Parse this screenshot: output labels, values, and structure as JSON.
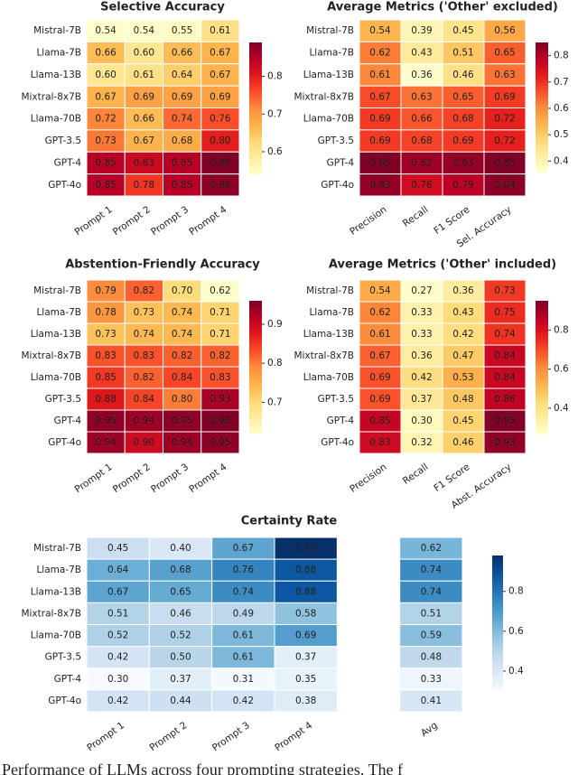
{
  "chart_data": [
    {
      "type": "heatmap",
      "title": "Selective Accuracy",
      "colormap": "YlOrRd",
      "rows": [
        "Mistral-7B",
        "Llama-7B",
        "Llama-13B",
        "Mixtral-8x7B",
        "Llama-70B",
        "GPT-3.5",
        "GPT-4",
        "GPT-4o"
      ],
      "columns": [
        "Prompt 1",
        "Prompt 2",
        "Prompt 3",
        "Prompt 4"
      ],
      "values": [
        [
          0.54,
          0.54,
          0.55,
          0.61
        ],
        [
          0.66,
          0.6,
          0.66,
          0.67
        ],
        [
          0.6,
          0.61,
          0.64,
          0.67
        ],
        [
          0.67,
          0.69,
          0.69,
          0.69
        ],
        [
          0.72,
          0.66,
          0.74,
          0.76
        ],
        [
          0.73,
          0.67,
          0.68,
          0.8
        ],
        [
          0.85,
          0.83,
          0.85,
          0.89
        ],
        [
          0.85,
          0.78,
          0.85,
          0.88
        ]
      ],
      "value_labels": [
        [
          "0.54",
          "0.54",
          "0.55",
          "0.61"
        ],
        [
          "0.66",
          "0.60",
          "0.66",
          "0.67"
        ],
        [
          "0.60",
          "0.61",
          "0.64",
          "0.67"
        ],
        [
          "0.67",
          "0.69",
          "0.69",
          "0.69"
        ],
        [
          "0.72",
          "0.66",
          "0.74",
          "0.76"
        ],
        [
          "0.73",
          "0.67",
          "0.68",
          "0.80"
        ],
        [
          "0.85",
          "0.83",
          "0.85",
          "0.89"
        ],
        [
          "0.85",
          "0.78",
          "0.85",
          "0.88"
        ]
      ],
      "clim": [
        0.54,
        0.89
      ],
      "cticks": [
        0.6,
        0.7,
        0.8
      ]
    },
    {
      "type": "heatmap",
      "title": "Average Metrics ('Other' excluded)",
      "colormap": "YlOrRd",
      "rows": [
        "Mistral-7B",
        "Llama-7B",
        "Llama-13B",
        "Mixtral-8x7B",
        "Llama-70B",
        "GPT-3.5",
        "GPT-4",
        "GPT-4o"
      ],
      "columns": [
        "Precision",
        "Recall",
        "F1 Score",
        "Sel. Accuracy"
      ],
      "values": [
        [
          0.54,
          0.39,
          0.45,
          0.56
        ],
        [
          0.62,
          0.43,
          0.51,
          0.65
        ],
        [
          0.61,
          0.36,
          0.46,
          0.63
        ],
        [
          0.67,
          0.63,
          0.65,
          0.69
        ],
        [
          0.69,
          0.66,
          0.68,
          0.72
        ],
        [
          0.69,
          0.68,
          0.69,
          0.72
        ],
        [
          0.85,
          0.82,
          0.83,
          0.85
        ],
        [
          0.83,
          0.76,
          0.79,
          0.84
        ]
      ],
      "value_labels": [
        [
          "0.54",
          "0.39",
          "0.45",
          "0.56"
        ],
        [
          "0.62",
          "0.43",
          "0.51",
          "0.65"
        ],
        [
          "0.61",
          "0.36",
          "0.46",
          "0.63"
        ],
        [
          "0.67",
          "0.63",
          "0.65",
          "0.69"
        ],
        [
          "0.69",
          "0.66",
          "0.68",
          "0.72"
        ],
        [
          "0.69",
          "0.68",
          "0.69",
          "0.72"
        ],
        [
          "0.85",
          "0.82",
          "0.83",
          "0.85"
        ],
        [
          "0.83",
          "0.76",
          "0.79",
          "0.84"
        ]
      ],
      "clim": [
        0.36,
        0.85
      ],
      "cticks": [
        0.4,
        0.5,
        0.6,
        0.7,
        0.8
      ]
    },
    {
      "type": "heatmap",
      "title": "Abstention-Friendly Accuracy",
      "colormap": "YlOrRd",
      "rows": [
        "Mistral-7B",
        "Llama-7B",
        "Llama-13B",
        "Mixtral-8x7B",
        "Llama-70B",
        "GPT-3.5",
        "GPT-4",
        "GPT-4o"
      ],
      "columns": [
        "Prompt 1",
        "Prompt 2",
        "Prompt 3",
        "Prompt 4"
      ],
      "values": [
        [
          0.79,
          0.82,
          0.7,
          0.62
        ],
        [
          0.78,
          0.73,
          0.74,
          0.71
        ],
        [
          0.73,
          0.74,
          0.74,
          0.71
        ],
        [
          0.83,
          0.83,
          0.82,
          0.82
        ],
        [
          0.85,
          0.82,
          0.84,
          0.83
        ],
        [
          0.88,
          0.84,
          0.8,
          0.93
        ],
        [
          0.95,
          0.94,
          0.95,
          0.96
        ],
        [
          0.94,
          0.9,
          0.94,
          0.95
        ]
      ],
      "value_labels": [
        [
          "0.79",
          "0.82",
          "0.70",
          "0.62"
        ],
        [
          "0.78",
          "0.73",
          "0.74",
          "0.71"
        ],
        [
          "0.73",
          "0.74",
          "0.74",
          "0.71"
        ],
        [
          "0.83",
          "0.83",
          "0.82",
          "0.82"
        ],
        [
          "0.85",
          "0.82",
          "0.84",
          "0.83"
        ],
        [
          "0.88",
          "0.84",
          "0.80",
          "0.93"
        ],
        [
          "0.95",
          "0.94",
          "0.95",
          "0.96"
        ],
        [
          "0.94",
          "0.90",
          "0.94",
          "0.95"
        ]
      ],
      "clim": [
        0.62,
        0.96
      ],
      "cticks": [
        0.7,
        0.8,
        0.9
      ]
    },
    {
      "type": "heatmap",
      "title": "Average Metrics ('Other' included)",
      "colormap": "YlOrRd",
      "rows": [
        "Mistral-7B",
        "Llama-7B",
        "Llama-13B",
        "Mixtral-8x7B",
        "Llama-70B",
        "GPT-3.5",
        "GPT-4",
        "GPT-4o"
      ],
      "columns": [
        "Precision",
        "Recall",
        "F1 Score",
        "Abst. Accuracy"
      ],
      "values": [
        [
          0.54,
          0.27,
          0.36,
          0.73
        ],
        [
          0.62,
          0.33,
          0.43,
          0.75
        ],
        [
          0.61,
          0.33,
          0.42,
          0.74
        ],
        [
          0.67,
          0.36,
          0.47,
          0.84
        ],
        [
          0.69,
          0.42,
          0.53,
          0.84
        ],
        [
          0.69,
          0.37,
          0.48,
          0.86
        ],
        [
          0.85,
          0.3,
          0.45,
          0.95
        ],
        [
          0.83,
          0.32,
          0.46,
          0.93
        ]
      ],
      "value_labels": [
        [
          "0.54",
          "0.27",
          "0.36",
          "0.73"
        ],
        [
          "0.62",
          "0.33",
          "0.43",
          "0.75"
        ],
        [
          "0.61",
          "0.33",
          "0.42",
          "0.74"
        ],
        [
          "0.67",
          "0.36",
          "0.47",
          "0.84"
        ],
        [
          "0.69",
          "0.42",
          "0.53",
          "0.84"
        ],
        [
          "0.69",
          "0.37",
          "0.48",
          "0.86"
        ],
        [
          "0.85",
          "0.30",
          "0.45",
          "0.95"
        ],
        [
          "0.83",
          "0.32",
          "0.46",
          "0.93"
        ]
      ],
      "clim": [
        0.27,
        0.95
      ],
      "cticks": [
        0.4,
        0.6,
        0.8
      ]
    },
    {
      "type": "heatmap",
      "title": "Certainty Rate",
      "colormap": "Blues",
      "rows": [
        "Mistral-7B",
        "Llama-7B",
        "Llama-13B",
        "Mixtral-8x7B",
        "Llama-70B",
        "GPT-3.5",
        "GPT-4",
        "GPT-4o"
      ],
      "columns": [
        "Prompt 1",
        "Prompt 2",
        "Prompt 3",
        "Prompt 4",
        null,
        "Avg"
      ],
      "values": [
        [
          0.45,
          0.4,
          0.67,
          0.98,
          null,
          0.62
        ],
        [
          0.64,
          0.68,
          0.76,
          0.88,
          null,
          0.74
        ],
        [
          0.67,
          0.65,
          0.74,
          0.88,
          null,
          0.74
        ],
        [
          0.51,
          0.46,
          0.49,
          0.58,
          null,
          0.51
        ],
        [
          0.52,
          0.52,
          0.61,
          0.69,
          null,
          0.59
        ],
        [
          0.42,
          0.5,
          0.61,
          0.37,
          null,
          0.48
        ],
        [
          0.3,
          0.37,
          0.31,
          0.35,
          null,
          0.33
        ],
        [
          0.42,
          0.44,
          0.42,
          0.38,
          null,
          0.41
        ]
      ],
      "value_labels": [
        [
          "0.45",
          "0.40",
          "0.67",
          "0.98",
          null,
          "0.62"
        ],
        [
          "0.64",
          "0.68",
          "0.76",
          "0.88",
          null,
          "0.74"
        ],
        [
          "0.67",
          "0.65",
          "0.74",
          "0.88",
          null,
          "0.74"
        ],
        [
          "0.51",
          "0.46",
          "0.49",
          "0.58",
          null,
          "0.51"
        ],
        [
          "0.52",
          "0.52",
          "0.61",
          "0.69",
          null,
          "0.59"
        ],
        [
          "0.42",
          "0.50",
          "0.61",
          "0.37",
          null,
          "0.48"
        ],
        [
          "0.30",
          "0.37",
          "0.31",
          "0.35",
          null,
          "0.33"
        ],
        [
          "0.42",
          "0.44",
          "0.42",
          "0.38",
          null,
          "0.41"
        ]
      ],
      "clim": [
        0.3,
        0.98
      ],
      "cticks": [
        0.4,
        0.6,
        0.8
      ]
    }
  ],
  "caption": "Performance of LLMs across four prompting strategies. The f"
}
